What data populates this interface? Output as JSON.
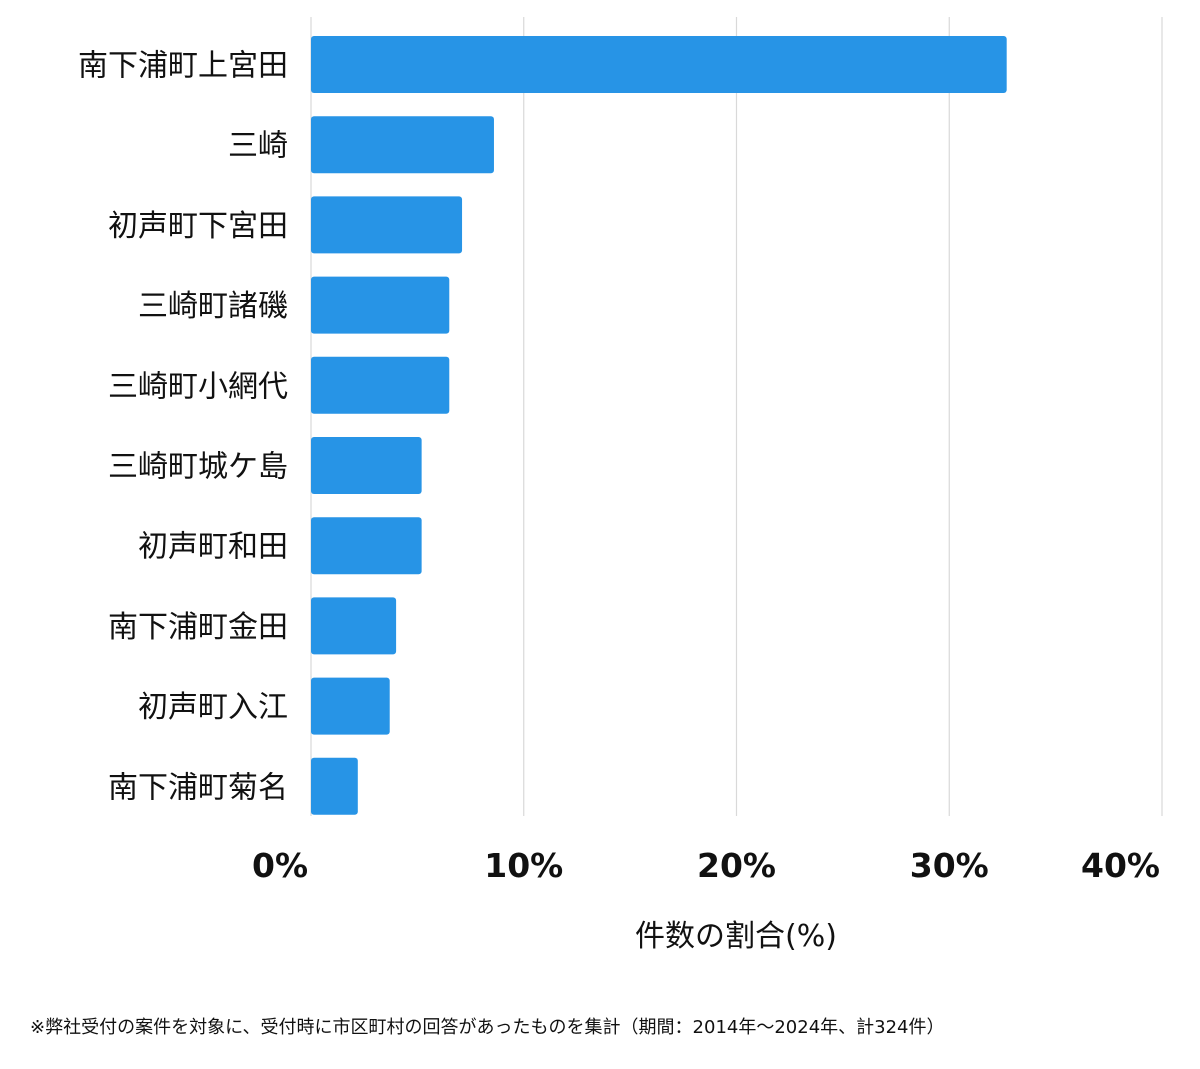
{
  "chart_data": {
    "type": "bar",
    "orientation": "horizontal",
    "categories": [
      "南下浦町上宮田",
      "三崎",
      "初声町下宮田",
      "三崎町諸磯",
      "三崎町小網代",
      "三崎町城ケ島",
      "初声町和田",
      "南下浦町金田",
      "初声町入江",
      "南下浦町菊名"
    ],
    "values": [
      32.7,
      8.6,
      7.1,
      6.5,
      6.5,
      5.2,
      5.2,
      4.0,
      3.7,
      2.2
    ],
    "xlim": [
      0,
      40
    ],
    "xticks": [
      0,
      10,
      20,
      30,
      40
    ],
    "xtick_labels": [
      "0%",
      "10%",
      "20%",
      "30%",
      "40%"
    ],
    "xlabel": "件数の割合(%)",
    "ylabel": "",
    "grid": true,
    "bar_color": "#2794e6"
  },
  "footnote": "※弊社受付の案件を対象に、受付時に市区町村の回答があったものを集計（期間：2014年～2024年、計324件）"
}
